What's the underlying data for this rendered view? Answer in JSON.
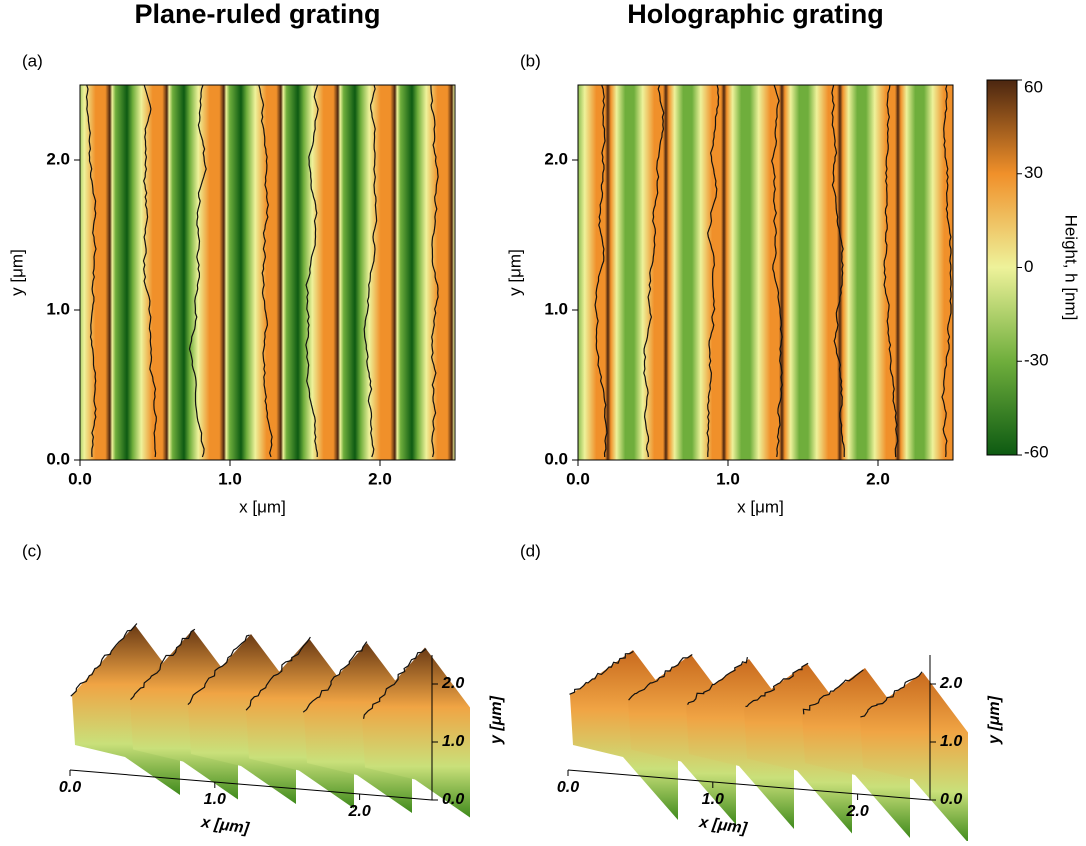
{
  "chart_data": [
    {
      "type": "heatmap",
      "panel_label": "(a)",
      "title": "Plane-ruled grating",
      "xlabel": "x [μm]",
      "ylabel": "y [μm]",
      "xlim": [
        0,
        2.5
      ],
      "ylim": [
        0,
        2.5
      ],
      "xticks": [
        {
          "value": 0,
          "label": "0.0"
        },
        {
          "value": 1,
          "label": "1.0"
        },
        {
          "value": 2,
          "label": "2.0"
        }
      ],
      "yticks": [
        {
          "value": 0,
          "label": "0.0"
        },
        {
          "value": 1,
          "label": "1.0"
        },
        {
          "value": 2,
          "label": "2.0"
        }
      ],
      "colormap": [
        "#0d5a12",
        "#6fae3c",
        "#eef29a",
        "#f0902a",
        "#4b2610"
      ]
    },
    {
      "type": "heatmap",
      "panel_label": "(b)",
      "title": "Holographic grating",
      "xlabel": "x [μm]",
      "ylabel": "y [μm]",
      "xlim": [
        0,
        2.5
      ],
      "ylim": [
        0,
        2.5
      ],
      "xticks": [
        {
          "value": 0,
          "label": "0.0"
        },
        {
          "value": 1,
          "label": "1.0"
        },
        {
          "value": 2,
          "label": "2.0"
        }
      ],
      "yticks": [
        {
          "value": 0,
          "label": "0.0"
        },
        {
          "value": 1,
          "label": "1.0"
        },
        {
          "value": 2,
          "label": "2.0"
        }
      ],
      "colormap": [
        "#0d5a12",
        "#6fae3c",
        "#eef29a",
        "#f0902a",
        "#4b2610"
      ],
      "colorbar": {
        "label": "Height, h [nm]",
        "lim": [
          -60,
          60
        ],
        "ticks": [
          60,
          30,
          0,
          -30,
          -60
        ]
      }
    },
    {
      "type": "surface",
      "panel_label": "(c)",
      "xlabel": "x [μm]",
      "ylabel": "y [μm]",
      "xlim": [
        0,
        2.5
      ],
      "ylim": [
        0,
        2.5
      ],
      "xticks": [
        {
          "value": 0,
          "label": "0.0"
        },
        {
          "value": 1,
          "label": "1.0"
        },
        {
          "value": 2,
          "label": "2.0"
        }
      ],
      "yticks": [
        {
          "value": 0,
          "label": "0.0"
        },
        {
          "value": 1,
          "label": "1.0"
        },
        {
          "value": 2,
          "label": "2.0"
        }
      ]
    },
    {
      "type": "surface",
      "panel_label": "(d)",
      "xlabel": "x [μm]",
      "ylabel": "y [μm]",
      "xlim": [
        0,
        2.5
      ],
      "ylim": [
        0,
        2.5
      ],
      "xticks": [
        {
          "value": 0,
          "label": "0.0"
        },
        {
          "value": 1,
          "label": "1.0"
        },
        {
          "value": 2,
          "label": "2.0"
        }
      ],
      "yticks": [
        {
          "value": 0,
          "label": "0.0"
        },
        {
          "value": 1,
          "label": "1.0"
        },
        {
          "value": 2,
          "label": "2.0"
        }
      ]
    }
  ]
}
